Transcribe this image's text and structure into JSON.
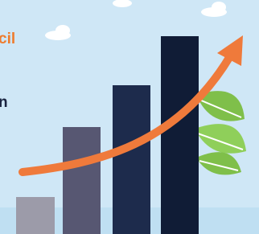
{
  "header": {
    "title": "cil",
    "subtitle": "n"
  }
}
